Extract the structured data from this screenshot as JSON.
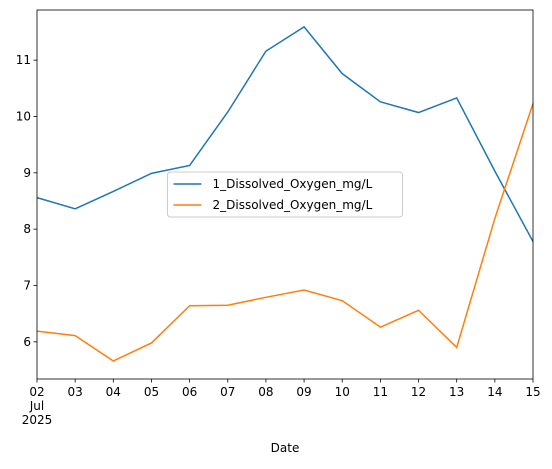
{
  "chart_data": {
    "type": "line",
    "x_label": "Date",
    "categories": [
      "02",
      "03",
      "04",
      "05",
      "06",
      "07",
      "08",
      "09",
      "10",
      "11",
      "12",
      "13",
      "14",
      "15"
    ],
    "x_sublabels": [
      "Jul",
      "2025"
    ],
    "series": [
      {
        "name": "1_Dissolved_Oxygen_mg/L",
        "color": "#1f77b4",
        "values": [
          8.56,
          8.36,
          8.67,
          8.99,
          9.13,
          10.08,
          11.16,
          11.59,
          10.76,
          10.26,
          10.07,
          10.33,
          9.03,
          7.78
        ]
      },
      {
        "name": "2_Dissolved_Oxygen_mg/L",
        "color": "#ff7f0e",
        "values": [
          6.19,
          6.11,
          5.66,
          5.98,
          6.64,
          6.65,
          6.79,
          6.92,
          6.73,
          6.26,
          6.56,
          5.9,
          8.19,
          10.23
        ]
      }
    ],
    "ylim": [
      5.34,
      11.89
    ],
    "yticks": [
      6,
      7,
      8,
      9,
      10,
      11
    ],
    "grid": false,
    "legend": "center"
  }
}
